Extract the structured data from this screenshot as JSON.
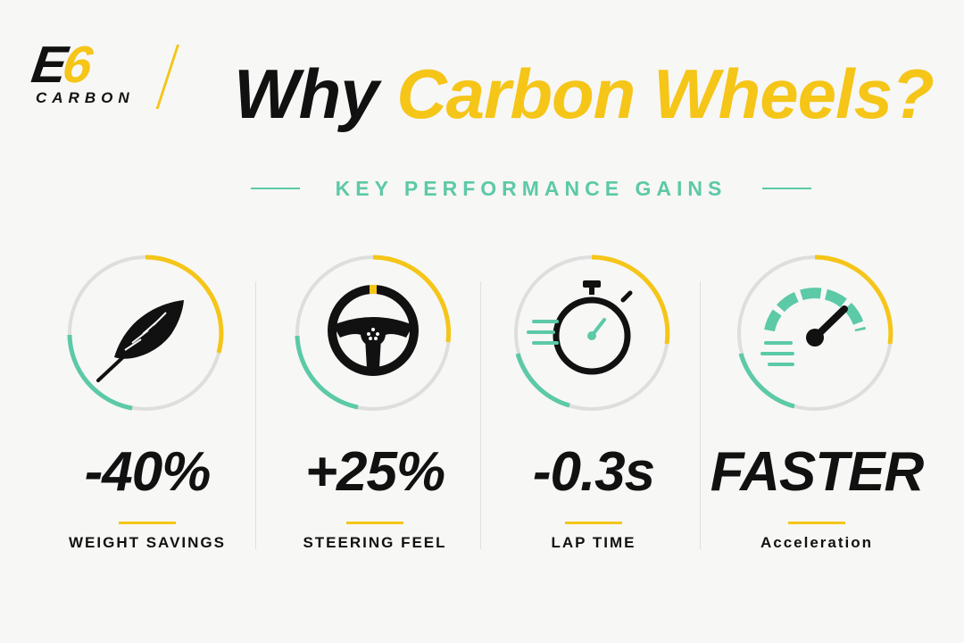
{
  "brand": {
    "mark_e": "E",
    "mark_6": "6",
    "sub": "CARBON"
  },
  "header": {
    "title_part1": "Why",
    "title_part2": "Carbon Wheels?",
    "subtitle": "KEY PERFORMANCE GAINS"
  },
  "colors": {
    "yellow": "#f5c518",
    "teal": "#5cc9a7",
    "black": "#111111",
    "ring_gray": "#dedede"
  },
  "stats": [
    {
      "icon": "feather-icon",
      "value": "-40%",
      "label": "WEIGHT SAVINGS"
    },
    {
      "icon": "steering-wheel-icon",
      "value": "+25%",
      "label": "STEERING FEEL"
    },
    {
      "icon": "stopwatch-icon",
      "value": "-0.3s",
      "label": "LAP TIME"
    },
    {
      "icon": "speedometer-icon",
      "value": "FASTER",
      "label": "Acceleration"
    }
  ]
}
